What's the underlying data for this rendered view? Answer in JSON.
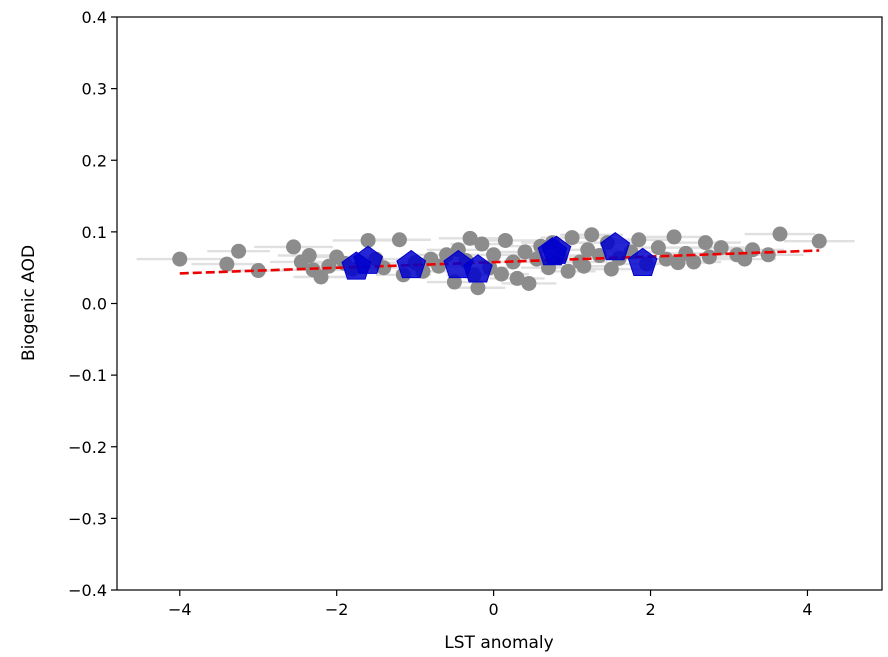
{
  "chart_data": {
    "type": "scatter",
    "xlabel": "LST anomaly",
    "ylabel": "Biogenic AOD",
    "xlim": [
      -4.8,
      4.95
    ],
    "ylim": [
      -0.4,
      0.4
    ],
    "x_ticks": [
      -4,
      -2,
      0,
      2,
      4
    ],
    "x_tick_labels": [
      "−4",
      "−2",
      "0",
      "2",
      "4"
    ],
    "y_ticks": [
      -0.4,
      -0.3,
      -0.2,
      -0.1,
      0.0,
      0.1,
      0.2,
      0.3,
      0.4
    ],
    "y_tick_labels": [
      "−0.4",
      "−0.3",
      "−0.2",
      "−0.1",
      "0.0",
      "0.1",
      "0.2",
      "0.3",
      "0.4"
    ],
    "grid": false,
    "series": [
      {
        "kind": "points-with-x-error",
        "color": "#8c8c8c",
        "errorbar_color": "#e0e0e0",
        "points": [
          {
            "x": -4.0,
            "y": 0.062,
            "xerr": 0.55
          },
          {
            "x": -3.4,
            "y": 0.055,
            "xerr": 0.45
          },
          {
            "x": -3.25,
            "y": 0.073,
            "xerr": 0.4
          },
          {
            "x": -3.0,
            "y": 0.046,
            "xerr": 0.4
          },
          {
            "x": -2.55,
            "y": 0.079,
            "xerr": 0.5
          },
          {
            "x": -2.45,
            "y": 0.058,
            "xerr": 0.4
          },
          {
            "x": -2.35,
            "y": 0.067,
            "xerr": 0.4
          },
          {
            "x": -2.3,
            "y": 0.047,
            "xerr": 0.4
          },
          {
            "x": -2.2,
            "y": 0.037,
            "xerr": 0.35
          },
          {
            "x": -2.1,
            "y": 0.052,
            "xerr": 0.4
          },
          {
            "x": -2.0,
            "y": 0.065,
            "xerr": 0.4
          },
          {
            "x": -1.9,
            "y": 0.056,
            "xerr": 0.4
          },
          {
            "x": -1.8,
            "y": 0.048,
            "xerr": 0.4
          },
          {
            "x": -1.6,
            "y": 0.088,
            "xerr": 0.45
          },
          {
            "x": -1.5,
            "y": 0.062,
            "xerr": 0.4
          },
          {
            "x": -1.4,
            "y": 0.05,
            "xerr": 0.4
          },
          {
            "x": -1.2,
            "y": 0.089,
            "xerr": 0.4
          },
          {
            "x": -1.15,
            "y": 0.04,
            "xerr": 0.35
          },
          {
            "x": -1.0,
            "y": 0.057,
            "xerr": 0.4
          },
          {
            "x": -0.9,
            "y": 0.045,
            "xerr": 0.35
          },
          {
            "x": -0.8,
            "y": 0.062,
            "xerr": 0.4
          },
          {
            "x": -0.7,
            "y": 0.052,
            "xerr": 0.35
          },
          {
            "x": -0.6,
            "y": 0.068,
            "xerr": 0.4
          },
          {
            "x": -0.5,
            "y": 0.03,
            "xerr": 0.35
          },
          {
            "x": -0.45,
            "y": 0.075,
            "xerr": 0.4
          },
          {
            "x": -0.35,
            "y": 0.06,
            "xerr": 0.35
          },
          {
            "x": -0.3,
            "y": 0.091,
            "xerr": 0.4
          },
          {
            "x": -0.25,
            "y": 0.04,
            "xerr": 0.35
          },
          {
            "x": -0.2,
            "y": 0.022,
            "xerr": 0.35
          },
          {
            "x": -0.15,
            "y": 0.083,
            "xerr": 0.4
          },
          {
            "x": -0.05,
            "y": 0.05,
            "xerr": 0.35
          },
          {
            "x": 0.0,
            "y": 0.068,
            "xerr": 0.4
          },
          {
            "x": 0.1,
            "y": 0.041,
            "xerr": 0.35
          },
          {
            "x": 0.15,
            "y": 0.088,
            "xerr": 0.4
          },
          {
            "x": 0.25,
            "y": 0.058,
            "xerr": 0.35
          },
          {
            "x": 0.3,
            "y": 0.035,
            "xerr": 0.35
          },
          {
            "x": 0.4,
            "y": 0.072,
            "xerr": 0.4
          },
          {
            "x": 0.45,
            "y": 0.028,
            "xerr": 0.35
          },
          {
            "x": 0.55,
            "y": 0.062,
            "xerr": 0.4
          },
          {
            "x": 0.6,
            "y": 0.08,
            "xerr": 0.4
          },
          {
            "x": 0.7,
            "y": 0.05,
            "xerr": 0.35
          },
          {
            "x": 0.75,
            "y": 0.085,
            "xerr": 0.4
          },
          {
            "x": 0.85,
            "y": 0.065,
            "xerr": 0.4
          },
          {
            "x": 0.95,
            "y": 0.045,
            "xerr": 0.35
          },
          {
            "x": 1.0,
            "y": 0.092,
            "xerr": 0.4
          },
          {
            "x": 1.1,
            "y": 0.058,
            "xerr": 0.35
          },
          {
            "x": 1.15,
            "y": 0.052,
            "xerr": 0.35
          },
          {
            "x": 1.2,
            "y": 0.075,
            "xerr": 0.4
          },
          {
            "x": 1.25,
            "y": 0.096,
            "xerr": 0.4
          },
          {
            "x": 1.35,
            "y": 0.067,
            "xerr": 0.4
          },
          {
            "x": 1.45,
            "y": 0.085,
            "xerr": 0.4
          },
          {
            "x": 1.5,
            "y": 0.048,
            "xerr": 0.35
          },
          {
            "x": 1.6,
            "y": 0.063,
            "xerr": 0.4
          },
          {
            "x": 1.75,
            "y": 0.072,
            "xerr": 0.4
          },
          {
            "x": 1.85,
            "y": 0.089,
            "xerr": 0.4
          },
          {
            "x": 1.95,
            "y": 0.055,
            "xerr": 0.35
          },
          {
            "x": 2.1,
            "y": 0.078,
            "xerr": 0.4
          },
          {
            "x": 2.2,
            "y": 0.062,
            "xerr": 0.4
          },
          {
            "x": 2.3,
            "y": 0.093,
            "xerr": 0.45
          },
          {
            "x": 2.35,
            "y": 0.057,
            "xerr": 0.35
          },
          {
            "x": 2.45,
            "y": 0.07,
            "xerr": 0.4
          },
          {
            "x": 2.55,
            "y": 0.058,
            "xerr": 0.35
          },
          {
            "x": 2.7,
            "y": 0.085,
            "xerr": 0.45
          },
          {
            "x": 2.75,
            "y": 0.065,
            "xerr": 0.4
          },
          {
            "x": 2.9,
            "y": 0.078,
            "xerr": 0.4
          },
          {
            "x": 3.1,
            "y": 0.068,
            "xerr": 0.4
          },
          {
            "x": 3.2,
            "y": 0.062,
            "xerr": 0.4
          },
          {
            "x": 3.3,
            "y": 0.075,
            "xerr": 0.4
          },
          {
            "x": 3.5,
            "y": 0.068,
            "xerr": 0.45
          },
          {
            "x": 3.65,
            "y": 0.097,
            "xerr": 0.45
          },
          {
            "x": 4.15,
            "y": 0.087,
            "xerr": 0.45
          }
        ]
      },
      {
        "kind": "binned-means",
        "marker": "pentagon",
        "color": "#0000cd",
        "points": [
          {
            "x": -1.75,
            "y": 0.051
          },
          {
            "x": -1.6,
            "y": 0.059
          },
          {
            "x": -1.05,
            "y": 0.053
          },
          {
            "x": -0.45,
            "y": 0.053
          },
          {
            "x": -0.2,
            "y": 0.047
          },
          {
            "x": 0.75,
            "y": 0.071
          },
          {
            "x": 0.8,
            "y": 0.073
          },
          {
            "x": 1.55,
            "y": 0.078
          },
          {
            "x": 1.9,
            "y": 0.056
          }
        ]
      },
      {
        "kind": "fit-line",
        "style": "dashed",
        "color": "#ee0000",
        "x": [
          -4.0,
          4.15
        ],
        "y": [
          0.042,
          0.074
        ]
      }
    ]
  }
}
